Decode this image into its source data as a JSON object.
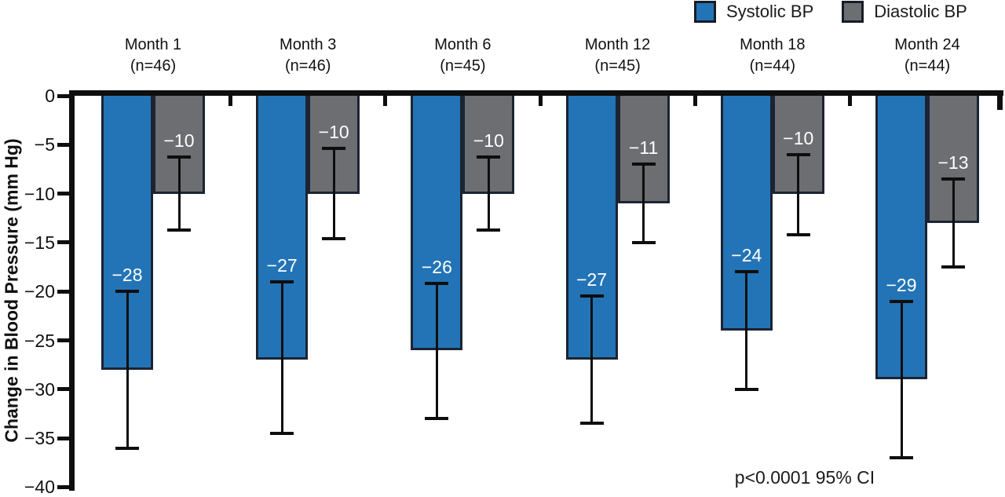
{
  "legend": {
    "items": [
      {
        "label": "Systolic BP",
        "color": "#2374B6"
      },
      {
        "label": "Diastolic BP",
        "color": "#6C6E71"
      }
    ]
  },
  "chart_data": {
    "type": "bar",
    "title": "",
    "xlabel": "",
    "ylabel": "Change in Blood Pressure (mm Hg)",
    "ylim": [
      -40,
      0
    ],
    "ytick_step": 5,
    "grid": false,
    "legend_position": "top-right",
    "categories": [
      "Month 1",
      "Month 3",
      "Month 6",
      "Month 12",
      "Month 18",
      "Month 24"
    ],
    "group_n": [
      "(n=46)",
      "(n=46)",
      "(n=45)",
      "(n=45)",
      "(n=44)",
      "(n=44)"
    ],
    "series": [
      {
        "name": "Systolic BP",
        "color": "#2374B6",
        "values": [
          -28,
          -27,
          -26,
          -27,
          -24,
          -29
        ],
        "ci_upper": [
          -20,
          -19,
          -19.2,
          -20.5,
          -18,
          -21
        ],
        "ci_lower": [
          -36,
          -34.5,
          -33,
          -33.5,
          -30,
          -37
        ]
      },
      {
        "name": "Diastolic BP",
        "color": "#6C6E71",
        "values": [
          -10,
          -10,
          -10,
          -11,
          -10,
          -13
        ],
        "ci_upper": [
          -6.3,
          -5.4,
          -6.3,
          -7,
          -6,
          -8.5
        ],
        "ci_lower": [
          -13.7,
          -14.6,
          -13.7,
          -15,
          -14.2,
          -17.5
        ]
      }
    ],
    "annotation": "p<0.0001 95% CI"
  }
}
